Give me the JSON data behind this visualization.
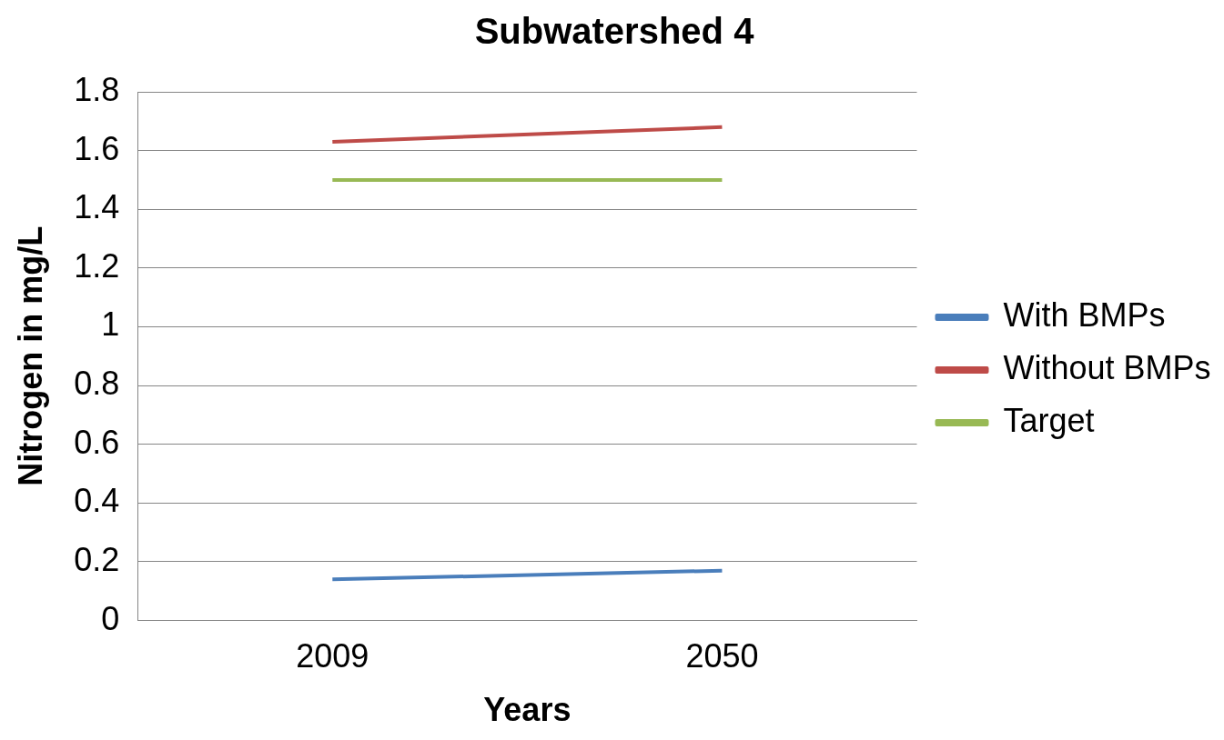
{
  "chart_data": {
    "type": "line",
    "title": "Subwatershed 4",
    "xlabel": "Years",
    "ylabel": "Nitrogen in mg/L",
    "categories": [
      "2009",
      "2050"
    ],
    "series": [
      {
        "name": "With BMPs",
        "color": "#4a7ebb",
        "values": [
          0.14,
          0.17
        ]
      },
      {
        "name": "Without BMPs",
        "color": "#be4b48",
        "values": [
          1.63,
          1.68
        ]
      },
      {
        "name": "Target",
        "color": "#98b954",
        "values": [
          1.5,
          1.5
        ]
      }
    ],
    "ylim": [
      0,
      1.8
    ],
    "yticks": [
      0,
      0.2,
      0.4,
      0.6,
      0.8,
      1,
      1.2,
      1.4,
      1.6,
      1.8
    ],
    "grid": "y",
    "legend": "right",
    "marker": "none",
    "line_style": "solid"
  }
}
